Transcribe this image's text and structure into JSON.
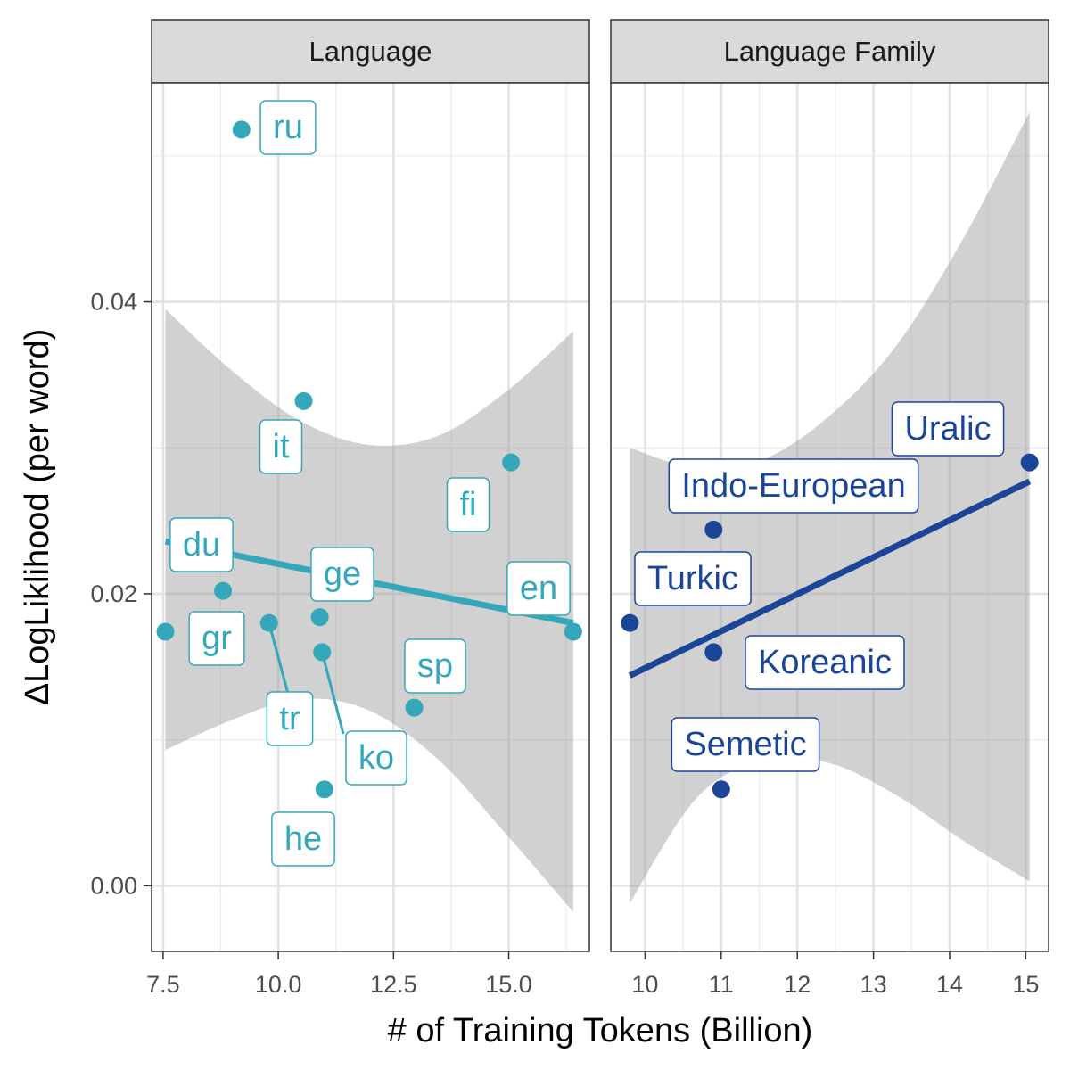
{
  "chart_data": {
    "type": "scatter",
    "ylabel": "ΔLogLiklihood (per word)",
    "xlabel": "# of Training Tokens (Billion)",
    "ylim": [
      -0.0045,
      0.055
    ],
    "yticks": [
      0.0,
      0.02,
      0.04
    ],
    "ytick_labels": [
      "0.00",
      "0.02",
      "0.04"
    ],
    "grid": true,
    "trend": "linear fit with confidence band",
    "panels": [
      {
        "title": "Language",
        "color": "#35A7BA",
        "xlim": [
          7.25,
          16.75
        ],
        "xticks": [
          7.5,
          10.0,
          12.5,
          15.0
        ],
        "xtick_labels": [
          "7.5",
          "10.0",
          "12.5",
          "15.0"
        ],
        "points": [
          {
            "label": "ru",
            "x": 9.2,
            "y": 0.0518
          },
          {
            "label": "it",
            "x": 10.55,
            "y": 0.0332
          },
          {
            "label": "fi",
            "x": 15.05,
            "y": 0.029
          },
          {
            "label": "du",
            "x": 8.8,
            "y": 0.0202
          },
          {
            "label": "ge",
            "x": 10.9,
            "y": 0.0184
          },
          {
            "label": "en",
            "x": 16.4,
            "y": 0.0174
          },
          {
            "label": "gr",
            "x": 7.55,
            "y": 0.0174
          },
          {
            "label": "tr",
            "x": 9.8,
            "y": 0.018
          },
          {
            "label": "ko",
            "x": 10.95,
            "y": 0.016
          },
          {
            "label": "sp",
            "x": 12.95,
            "y": 0.0122
          },
          {
            "label": "he",
            "x": 11.0,
            "y": 0.0066
          }
        ],
        "fit_x": [
          7.55,
          16.4
        ],
        "fit_y": [
          0.0236,
          0.018
        ],
        "band_upper": [
          0.0395,
          0.0352,
          0.0318,
          0.0302,
          0.0308,
          0.0338,
          0.038
        ],
        "band_lower": [
          0.0093,
          0.0114,
          0.0128,
          0.012,
          0.0087,
          0.0036,
          -0.0018
        ]
      },
      {
        "title": "Language Family",
        "color": "#1B4597",
        "xlim": [
          9.55,
          15.3
        ],
        "xticks": [
          10,
          11,
          12,
          13,
          14,
          15
        ],
        "xtick_labels": [
          "10",
          "11",
          "12",
          "13",
          "14",
          "15"
        ],
        "points": [
          {
            "label": "Uralic",
            "x": 15.05,
            "y": 0.029
          },
          {
            "label": "Indo-European",
            "x": 10.9,
            "y": 0.0244
          },
          {
            "label": "Turkic",
            "x": 9.8,
            "y": 0.018
          },
          {
            "label": "Koreanic",
            "x": 10.9,
            "y": 0.016
          },
          {
            "label": "Semetic",
            "x": 11.0,
            "y": 0.0066
          }
        ],
        "fit_x": [
          9.8,
          15.05
        ],
        "fit_y": [
          0.0144,
          0.0277
        ],
        "band_upper": [
          0.03,
          0.0286,
          0.0292,
          0.0322,
          0.037,
          0.0443,
          0.053
        ],
        "band_lower": [
          -0.0012,
          0.006,
          0.0086,
          0.0084,
          0.0062,
          0.0031,
          0.0003
        ]
      }
    ]
  }
}
